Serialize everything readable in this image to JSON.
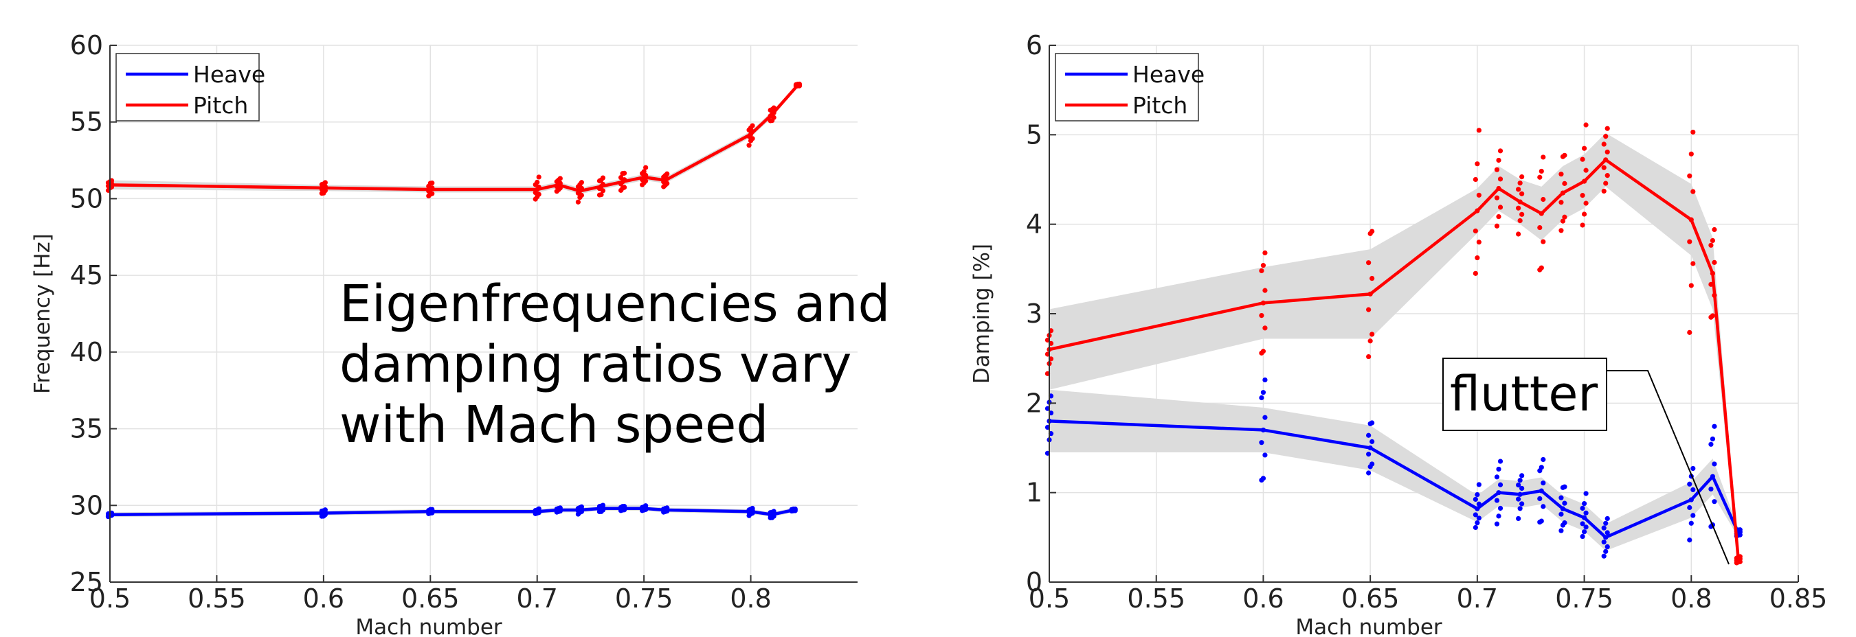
{
  "colors": {
    "heave": "#0000ff",
    "pitch": "#ff0000",
    "band": "#dcdcdc",
    "grid": "#e2e2e2"
  },
  "annotation_main": [
    "Eigenfrequencies and",
    "damping ratios vary",
    "with Mach speed"
  ],
  "annotation_flutter": "flutter",
  "chart_data": [
    {
      "type": "line",
      "xlabel": "Mach number",
      "ylabel": "Frequency [Hz]",
      "xlim": [
        0.5,
        0.85
      ],
      "ylim": [
        25,
        60
      ],
      "xticks": [
        "0.5",
        "0.55",
        "0.6",
        "0.65",
        "0.7",
        "0.75",
        "0.8"
      ],
      "yticks": [
        "25",
        "30",
        "35",
        "40",
        "45",
        "50",
        "55",
        "60"
      ],
      "grid": true,
      "legend": {
        "position": "top-left",
        "entries": [
          "Heave",
          "Pitch"
        ]
      },
      "series": [
        {
          "name": "Heave",
          "color": "#0000ff",
          "x": [
            0.5,
            0.6,
            0.65,
            0.7,
            0.71,
            0.72,
            0.73,
            0.74,
            0.75,
            0.76,
            0.8,
            0.81,
            0.82
          ],
          "y": [
            29.4,
            29.5,
            29.6,
            29.6,
            29.7,
            29.7,
            29.8,
            29.8,
            29.8,
            29.7,
            29.6,
            29.4,
            29.7
          ],
          "band": [
            0.15,
            0.15,
            0.15,
            0.15,
            0.15,
            0.15,
            0.15,
            0.15,
            0.15,
            0.15,
            0.15,
            0.15,
            0.15
          ],
          "scatter_spread": [
            0.15,
            0.3,
            0.2,
            0.2,
            0.2,
            0.3,
            0.3,
            0.2,
            0.2,
            0.2,
            0.3,
            0.3,
            0.1
          ]
        },
        {
          "name": "Pitch",
          "color": "#ff0000",
          "x": [
            0.5,
            0.6,
            0.65,
            0.7,
            0.71,
            0.72,
            0.73,
            0.74,
            0.75,
            0.76,
            0.8,
            0.81,
            0.822
          ],
          "y": [
            50.9,
            50.7,
            50.6,
            50.6,
            50.9,
            50.5,
            50.8,
            51.1,
            51.4,
            51.2,
            54.2,
            55.5,
            57.4
          ],
          "band": [
            0.3,
            0.2,
            0.2,
            0.2,
            0.2,
            0.2,
            0.2,
            0.2,
            0.2,
            0.2,
            0.2,
            0.2,
            0.1
          ],
          "scatter_spread": [
            0.4,
            0.5,
            0.6,
            0.9,
            0.6,
            0.8,
            0.8,
            0.8,
            0.7,
            0.6,
            0.8,
            0.6,
            0.1
          ]
        }
      ]
    },
    {
      "type": "line",
      "xlabel": "Mach number",
      "ylabel": "Damping [%]",
      "xlim": [
        0.5,
        0.85
      ],
      "ylim": [
        0,
        6
      ],
      "xticks": [
        "0.5",
        "0.55",
        "0.6",
        "0.65",
        "0.7",
        "0.75",
        "0.8",
        "0.85"
      ],
      "yticks": [
        "0",
        "1",
        "2",
        "3",
        "4",
        "5",
        "6"
      ],
      "grid": true,
      "legend": {
        "position": "top-left",
        "entries": [
          "Heave",
          "Pitch"
        ]
      },
      "series": [
        {
          "name": "Heave",
          "color": "#0000ff",
          "x": [
            0.5,
            0.6,
            0.65,
            0.7,
            0.71,
            0.72,
            0.73,
            0.74,
            0.75,
            0.76,
            0.8,
            0.81,
            0.822
          ],
          "y": [
            1.8,
            1.7,
            1.5,
            0.82,
            1.0,
            0.98,
            1.02,
            0.82,
            0.72,
            0.5,
            0.92,
            1.18,
            0.55
          ],
          "band": [
            0.35,
            0.25,
            0.25,
            0.15,
            0.15,
            0.15,
            0.15,
            0.15,
            0.15,
            0.15,
            0.2,
            0.2,
            0.05
          ],
          "scatter_spread": [
            0.4,
            0.8,
            0.4,
            0.3,
            0.5,
            0.3,
            0.5,
            0.35,
            0.3,
            0.3,
            0.5,
            0.8,
            0.05
          ]
        },
        {
          "name": "Pitch",
          "color": "#ff0000",
          "x": [
            0.5,
            0.6,
            0.65,
            0.7,
            0.71,
            0.72,
            0.73,
            0.74,
            0.75,
            0.76,
            0.8,
            0.81,
            0.822
          ],
          "y": [
            2.6,
            3.12,
            3.22,
            4.15,
            4.4,
            4.25,
            4.12,
            4.35,
            4.48,
            4.72,
            4.05,
            3.45,
            0.25
          ],
          "band": [
            0.45,
            0.4,
            0.5,
            0.25,
            0.25,
            0.25,
            0.3,
            0.3,
            0.3,
            0.3,
            0.4,
            0.4,
            0.05
          ],
          "scatter_spread": [
            0.3,
            0.8,
            1.0,
            1.0,
            0.6,
            0.4,
            0.9,
            0.6,
            0.7,
            0.5,
            1.4,
            0.7,
            0.05
          ]
        }
      ]
    }
  ]
}
